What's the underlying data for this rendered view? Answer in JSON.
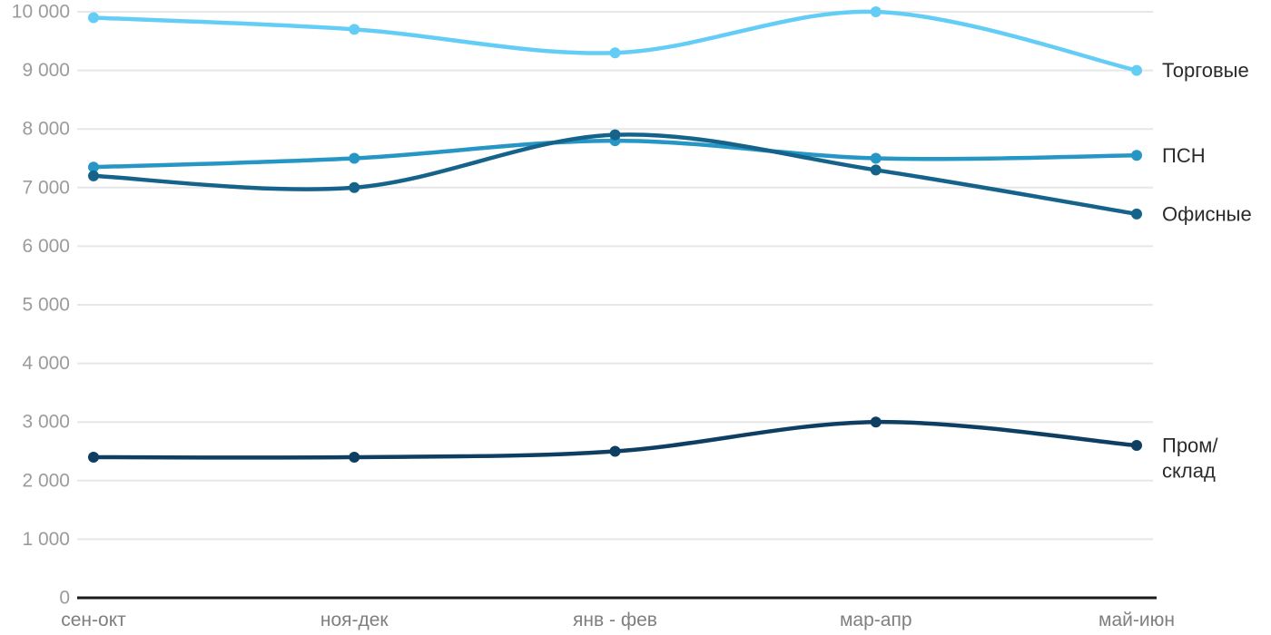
{
  "chart_data": {
    "type": "line",
    "title": "",
    "xlabel": "",
    "ylabel": "",
    "categories": [
      "сен-окт",
      "ноя-дек",
      "янв - фев",
      "мар-апр",
      "май-июн"
    ],
    "series": [
      {
        "key": "torgovye",
        "name": "Торговые",
        "label_lines": [
          "Торговые"
        ],
        "color": "#64CDF6",
        "values": [
          9900,
          9700,
          9300,
          10000,
          9000
        ]
      },
      {
        "key": "psn",
        "name": "ПСН",
        "label_lines": [
          "ПСН"
        ],
        "color": "#2697C4",
        "values": [
          7350,
          7500,
          7800,
          7500,
          7550
        ]
      },
      {
        "key": "ofisnye",
        "name": "Офисные",
        "label_lines": [
          "Офисные"
        ],
        "color": "#15638A",
        "values": [
          7200,
          7000,
          7900,
          7300,
          6550
        ]
      },
      {
        "key": "prom-sklad",
        "name": "Пром/склад",
        "label_lines": [
          "Пром/",
          "склад"
        ],
        "color": "#0E3F63",
        "values": [
          2400,
          2400,
          2500,
          3000,
          2600
        ]
      }
    ],
    "ylim": [
      0,
      10000
    ],
    "ytick_step": 1000,
    "ytick_label_format": "space-thousands",
    "grid": true,
    "legend_position": "right-of-line-end"
  },
  "colors": {
    "background": "#FFFFFF",
    "gridline": "#E7E7E7",
    "axis_line": "#1A1A1A",
    "ytick_text": "#9B9B9B",
    "xtick_text": "#7F7F7F",
    "series_label_text": "#2B2B2B"
  }
}
